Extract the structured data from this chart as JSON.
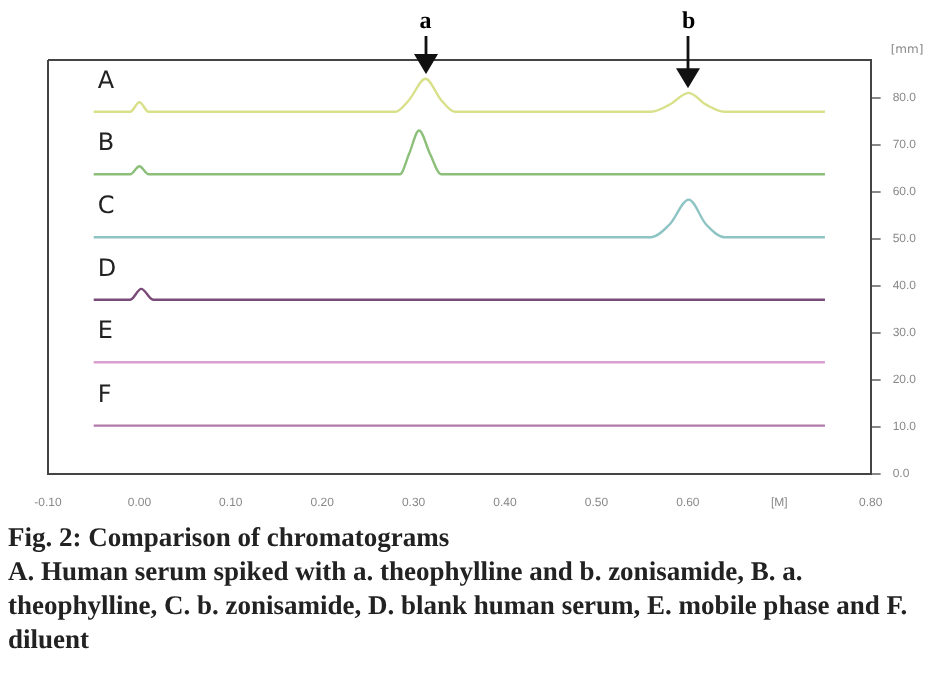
{
  "chart_data": {
    "type": "line",
    "title": "Fig. 2: Comparison of chromatograms",
    "subtitle": "A. Human serum spiked with a. theophylline and b. zonisamide, B. a. theophylline, C. b. zonisamide, D. blank human serum, E. mobile phase and F. diluent",
    "ylabel": "[mm]",
    "xlim": [
      -0.1,
      0.8
    ],
    "xticks": [
      {
        "value": -0.1,
        "label": "-0.10"
      },
      {
        "value": 0,
        "label": "0.00"
      },
      {
        "value": 0.1,
        "label": "0.10"
      },
      {
        "value": 0.2,
        "label": "0.20"
      },
      {
        "value": 0.3,
        "label": "0.30"
      },
      {
        "value": 0.4,
        "label": "0.40"
      },
      {
        "value": 0.5,
        "label": "0.50"
      },
      {
        "value": 0.6,
        "label": "0.60"
      },
      {
        "value": 0.7,
        "label": "[M]"
      },
      {
        "value": 0.8,
        "label": "0.80"
      }
    ],
    "ylim": [
      0,
      88
    ],
    "yticks": [
      {
        "value": 0,
        "label": "0.0"
      },
      {
        "value": 10,
        "label": "10.0"
      },
      {
        "value": 20,
        "label": "20.0"
      },
      {
        "value": 30,
        "label": "30.0"
      },
      {
        "value": 40,
        "label": "40.0"
      },
      {
        "value": 50,
        "label": "50.0"
      },
      {
        "value": 60,
        "label": "60.0"
      },
      {
        "value": 70,
        "label": "70.0"
      },
      {
        "value": 80,
        "label": "80.0"
      }
    ],
    "grid": false,
    "legend": false,
    "marker": "none",
    "line_style": "solid",
    "series": [
      {
        "name": "A",
        "color": "#d9e08a",
        "x": [
          -0.05,
          -0.01,
          0.0,
          0.01,
          0.05,
          0.28,
          0.295,
          0.313,
          0.33,
          0.345,
          0.56,
          0.58,
          0.601,
          0.62,
          0.64,
          0.75
        ],
        "values": [
          77,
          77,
          79,
          77,
          77,
          77,
          79.5,
          84,
          79.5,
          77,
          77,
          78.5,
          81,
          78.5,
          77,
          77
        ]
      },
      {
        "name": "B",
        "color": "#8cc07a",
        "x": [
          -0.05,
          -0.01,
          0.0,
          0.01,
          0.05,
          0.285,
          0.295,
          0.306,
          0.318,
          0.33,
          0.75
        ],
        "values": [
          63.7,
          63.7,
          65.4,
          63.7,
          63.7,
          63.7,
          68,
          73,
          68,
          63.7,
          63.7
        ]
      },
      {
        "name": "C",
        "color": "#8fc4c4",
        "x": [
          -0.05,
          0.56,
          0.58,
          0.601,
          0.62,
          0.64,
          0.75
        ],
        "values": [
          50.3,
          50.3,
          53,
          58.3,
          53,
          50.3,
          50.3
        ]
      },
      {
        "name": "D",
        "color": "#7a4a78",
        "x": [
          -0.05,
          -0.01,
          0.002,
          0.015,
          0.05,
          0.75
        ],
        "values": [
          37,
          37,
          39.3,
          37,
          37,
          37
        ]
      },
      {
        "name": "E",
        "color": "#d9a0d0",
        "x": [
          -0.05,
          0.75
        ],
        "values": [
          23.7,
          23.7
        ]
      },
      {
        "name": "F",
        "color": "#b07aa8",
        "x": [
          -0.05,
          0.75
        ],
        "values": [
          10.2,
          10.2
        ]
      }
    ],
    "annotations": [
      {
        "text": "a",
        "x": 0.313,
        "y": 85
      },
      {
        "text": "b",
        "x": 0.601,
        "y": 82
      }
    ]
  }
}
